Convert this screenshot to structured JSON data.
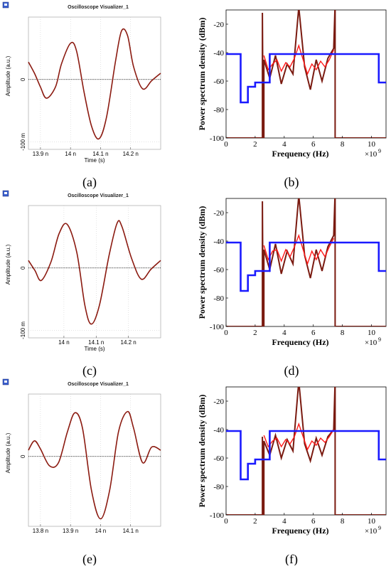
{
  "panels": [
    {
      "id": "a",
      "caption": "(a)",
      "window_title": "Oscilloscope Visualizer_1",
      "icon": "oscilloscope-app-icon",
      "chart_data": {
        "type": "line",
        "ylabel": "Amplitude (a.u.)",
        "xlabel": "Time (s)",
        "xlim": [
          13.86,
          14.3
        ],
        "ylim": [
          -0.112,
          0.1
        ],
        "x_ticks": [
          {
            "v": 13.9,
            "label": "13.9 n"
          },
          {
            "v": 14.0,
            "label": "14 n"
          },
          {
            "v": 14.1,
            "label": "14.1 n"
          },
          {
            "v": 14.2,
            "label": "14.2 n"
          }
        ],
        "y_ticks": [
          {
            "v": 0,
            "label": "0"
          },
          {
            "v": -0.1,
            "label": "-100 m"
          }
        ],
        "series": [
          {
            "color": "#8b1a10",
            "x": [
              13.86,
              13.88,
              13.9,
              13.92,
              13.95,
              13.97,
              14.0,
              14.02,
              14.045,
              14.07,
              14.095,
              14.12,
              14.15,
              14.17,
              14.19,
              14.21,
              14.24,
              14.27,
              14.3
            ],
            "y": [
              0.028,
              0.01,
              -0.012,
              -0.03,
              -0.012,
              0.025,
              0.058,
              0.046,
              -0.02,
              -0.075,
              -0.095,
              -0.06,
              0.03,
              0.078,
              0.07,
              0.02,
              -0.015,
              -0.002,
              0.01
            ]
          }
        ]
      }
    },
    {
      "id": "b",
      "caption": "(b)",
      "chart_data": {
        "type": "line",
        "ylabel": "Power spectrum density (dBm)",
        "xlabel": "Frequency (Hz)",
        "x_multiplier": "×10",
        "x_multiplier_exp": "9",
        "xlim": [
          0,
          11
        ],
        "ylim": [
          -100,
          -10
        ],
        "x_ticks": [
          {
            "v": 0,
            "label": "0"
          },
          {
            "v": 2,
            "label": "2"
          },
          {
            "v": 4,
            "label": "4"
          },
          {
            "v": 6,
            "label": "6"
          },
          {
            "v": 8,
            "label": "8"
          },
          {
            "v": 10,
            "label": "10"
          }
        ],
        "y_ticks": [
          {
            "v": -20,
            "label": "-20"
          },
          {
            "v": -40,
            "label": "-40"
          },
          {
            "v": -60,
            "label": "-60"
          },
          {
            "v": -80,
            "label": "-80"
          },
          {
            "v": -100,
            "label": "-100"
          }
        ],
        "series": [
          {
            "color": "#1a1aff",
            "x": [
              0,
              1,
              1,
              1.5,
              1.5,
              2,
              2,
              3,
              3,
              10.5,
              10.5,
              11
            ],
            "y": [
              -41,
              -41,
              -75,
              -75,
              -64,
              -64,
              -61,
              -61,
              -41,
              -41,
              -61,
              -61
            ]
          },
          {
            "color": "#7a1a10",
            "x": [
              0,
              2.5,
              2.5,
              2.55,
              2.6,
              2.6,
              3,
              3.4,
              3.8,
              4.2,
              4.6,
              5,
              5.4,
              5.8,
              6.2,
              6.6,
              7,
              7.4,
              7.5,
              7.5,
              7.55,
              7.6,
              7.6,
              11
            ],
            "y": [
              -100,
              -100,
              -12,
              -100,
              -100,
              -45,
              -58,
              -42,
              -62,
              -48,
              -55,
              -8,
              -50,
              -66,
              -45,
              -60,
              -44,
              -37,
              -5,
              -100,
              -100,
              -100,
              -100,
              -100
            ]
          },
          {
            "color": "#ff1a1a",
            "x": [
              2.6,
              2.9,
              3.2,
              3.5,
              3.8,
              4.1,
              4.4,
              4.7,
              5,
              5.3,
              5.6,
              5.9,
              6.2,
              6.5,
              6.8,
              7.1,
              7.4
            ],
            "y": [
              -42,
              -52,
              -48,
              -45,
              -53,
              -47,
              -50,
              -44,
              -35,
              -45,
              -55,
              -48,
              -52,
              -46,
              -50,
              -45,
              -38
            ]
          }
        ]
      }
    },
    {
      "id": "c",
      "caption": "(c)",
      "window_title": "Oscilloscope Visualizer_1",
      "icon": "oscilloscope-app-icon",
      "chart_data": {
        "type": "line",
        "ylabel": "Amplitude (a.u.)",
        "xlabel": "Time (s)",
        "xlim": [
          13.89,
          14.3
        ],
        "ylim": [
          -0.112,
          0.1
        ],
        "x_ticks": [
          {
            "v": 14.0,
            "label": "14 n"
          },
          {
            "v": 14.1,
            "label": "14.1 n"
          },
          {
            "v": 14.2,
            "label": "14.2 n"
          }
        ],
        "y_ticks": [
          {
            "v": 0,
            "label": "0"
          },
          {
            "v": -0.1,
            "label": "-100 m"
          }
        ],
        "series": [
          {
            "color": "#8b1a10",
            "x": [
              13.89,
              13.91,
              13.93,
              13.96,
              13.985,
              14.01,
              14.04,
              14.065,
              14.085,
              14.11,
              14.14,
              14.165,
              14.18,
              14.21,
              14.24,
              14.27,
              14.3
            ],
            "y": [
              0.012,
              -0.004,
              -0.02,
              0.01,
              0.055,
              0.07,
              0.025,
              -0.06,
              -0.09,
              -0.06,
              0.02,
              0.072,
              0.066,
              0.015,
              -0.018,
              -0.002,
              0.012
            ]
          }
        ]
      }
    },
    {
      "id": "d",
      "caption": "(d)",
      "chart_data": {
        "type": "line",
        "ylabel": "Power spectrum density (dBm)",
        "xlabel": "Frequency (Hz)",
        "x_multiplier": "×10",
        "x_multiplier_exp": "9",
        "xlim": [
          0,
          11
        ],
        "ylim": [
          -100,
          -10
        ],
        "x_ticks": [
          {
            "v": 0,
            "label": "0"
          },
          {
            "v": 2,
            "label": "2"
          },
          {
            "v": 4,
            "label": "4"
          },
          {
            "v": 6,
            "label": "6"
          },
          {
            "v": 8,
            "label": "8"
          },
          {
            "v": 10,
            "label": "10"
          }
        ],
        "y_ticks": [
          {
            "v": -20,
            "label": "-20"
          },
          {
            "v": -40,
            "label": "-40"
          },
          {
            "v": -60,
            "label": "-60"
          },
          {
            "v": -80,
            "label": "-80"
          },
          {
            "v": -100,
            "label": "-100"
          }
        ],
        "series": [
          {
            "color": "#1a1aff",
            "x": [
              0,
              1,
              1,
              1.5,
              1.5,
              2,
              2,
              3,
              3,
              10.5,
              10.5,
              11
            ],
            "y": [
              -41,
              -41,
              -75,
              -75,
              -64,
              -64,
              -61,
              -61,
              -41,
              -41,
              -61,
              -61
            ]
          },
          {
            "color": "#7a1a10",
            "x": [
              0,
              2.5,
              2.5,
              2.55,
              2.6,
              2.6,
              3,
              3.4,
              3.8,
              4.2,
              4.6,
              5,
              5.4,
              5.8,
              6.2,
              6.6,
              7,
              7.4,
              7.5,
              7.5,
              7.55,
              7.6,
              7.6,
              11
            ],
            "y": [
              -100,
              -100,
              -12,
              -100,
              -100,
              -46,
              -60,
              -42,
              -63,
              -47,
              -56,
              -8,
              -50,
              -66,
              -46,
              -61,
              -44,
              -36,
              -5,
              -100,
              -100,
              -100,
              -100,
              -100
            ]
          },
          {
            "color": "#ff1a1a",
            "x": [
              2.6,
              2.9,
              3.2,
              3.5,
              3.8,
              4.1,
              4.4,
              4.7,
              5,
              5.3,
              5.6,
              5.9,
              6.2,
              6.5,
              6.8,
              7.1,
              7.4
            ],
            "y": [
              -43,
              -53,
              -47,
              -46,
              -54,
              -46,
              -51,
              -44,
              -36,
              -46,
              -56,
              -47,
              -53,
              -46,
              -51,
              -44,
              -38
            ]
          }
        ]
      }
    },
    {
      "id": "e",
      "caption": "(e)",
      "window_title": "Oscilloscope Visualizer_1",
      "icon": "oscilloscope-app-icon",
      "chart_data": {
        "type": "line",
        "ylabel": "Amplitude (a.u.)",
        "xlabel": "",
        "xlim": [
          13.76,
          14.2
        ],
        "ylim": [
          -0.112,
          0.1
        ],
        "x_ticks": [
          {
            "v": 13.8,
            "label": "13.8 n"
          },
          {
            "v": 13.9,
            "label": "13.9 n"
          },
          {
            "v": 14.0,
            "label": "14 n"
          },
          {
            "v": 14.1,
            "label": "14.1 n"
          }
        ],
        "y_ticks": [
          {
            "v": 0,
            "label": "0"
          }
        ],
        "series": [
          {
            "color": "#8b1a10",
            "x": [
              13.76,
              13.78,
              13.8,
              13.83,
              13.86,
              13.89,
              13.915,
              13.94,
              13.97,
              14.0,
              14.03,
              14.06,
              14.09,
              14.11,
              14.14,
              14.17,
              14.2
            ],
            "y": [
              0.01,
              0.025,
              0.012,
              -0.015,
              -0.01,
              0.04,
              0.07,
              0.045,
              -0.055,
              -0.1,
              -0.055,
              0.04,
              0.072,
              0.045,
              -0.01,
              0.015,
              0.01
            ]
          }
        ]
      }
    },
    {
      "id": "f",
      "caption": "(f)",
      "chart_data": {
        "type": "line",
        "ylabel": "Power spectrum density (dBm)",
        "xlabel": "Frequency (Hz)",
        "x_multiplier": "×10",
        "x_multiplier_exp": "9",
        "xlim": [
          0,
          11
        ],
        "ylim": [
          -100,
          -10
        ],
        "x_ticks": [
          {
            "v": 0,
            "label": "0"
          },
          {
            "v": 2,
            "label": "2"
          },
          {
            "v": 4,
            "label": "4"
          },
          {
            "v": 6,
            "label": "6"
          },
          {
            "v": 8,
            "label": "8"
          },
          {
            "v": 10,
            "label": "10"
          }
        ],
        "y_ticks": [
          {
            "v": -20,
            "label": "-20"
          },
          {
            "v": -40,
            "label": "-40"
          },
          {
            "v": -60,
            "label": "-60"
          },
          {
            "v": -80,
            "label": "-80"
          },
          {
            "v": -100,
            "label": "-100"
          }
        ],
        "series": [
          {
            "color": "#1a1aff",
            "x": [
              0,
              1,
              1,
              1.5,
              1.5,
              2,
              2,
              3,
              3,
              10.5,
              10.5,
              11
            ],
            "y": [
              -41,
              -41,
              -75,
              -75,
              -64,
              -64,
              -61,
              -61,
              -41,
              -41,
              -61,
              -61
            ]
          },
          {
            "color": "#7a1a10",
            "x": [
              0,
              2.5,
              2.5,
              2.55,
              2.6,
              2.6,
              3,
              3.4,
              3.8,
              4.2,
              4.6,
              5,
              5.4,
              5.8,
              6.2,
              6.6,
              7,
              7.4,
              7.5,
              7.5,
              7.55,
              7.6,
              7.6,
              11
            ],
            "y": [
              -100,
              -100,
              -45,
              -100,
              -100,
              -48,
              -58,
              -44,
              -60,
              -47,
              -55,
              -6,
              -50,
              -62,
              -46,
              -58,
              -45,
              -40,
              -5,
              -100,
              -100,
              -100,
              -100,
              -100
            ]
          },
          {
            "color": "#ff1a1a",
            "x": [
              2.6,
              2.9,
              3.2,
              3.5,
              3.8,
              4.1,
              4.4,
              4.7,
              5,
              5.3,
              5.6,
              5.9,
              6.2,
              6.5,
              6.8,
              7.1,
              7.4
            ],
            "y": [
              -44,
              -52,
              -48,
              -46,
              -52,
              -47,
              -50,
              -45,
              -36,
              -45,
              -54,
              -48,
              -51,
              -46,
              -49,
              -45,
              -40
            ]
          }
        ]
      }
    }
  ]
}
